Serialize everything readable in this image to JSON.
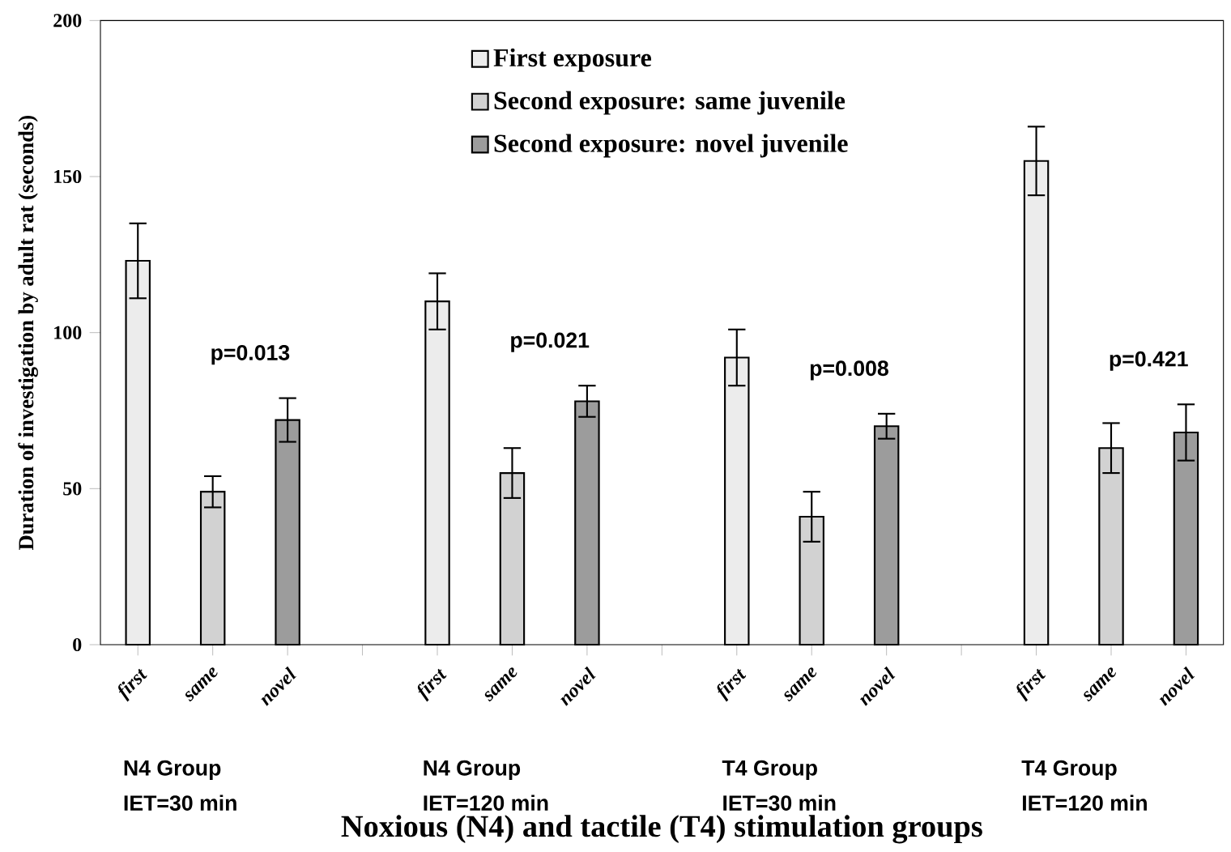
{
  "chart_data": {
    "type": "bar",
    "xlabel": "Noxious (N4) and tactile (T4) stimulation groups",
    "ylabel": "Duration of investigation by adult rat (seconds)",
    "categories": [
      "first",
      "same",
      "novel",
      null,
      "first",
      "same",
      "novel",
      null,
      "first",
      "same",
      "novel",
      null,
      "first",
      "same",
      "novel"
    ],
    "series": [
      {
        "name": "First exposure",
        "color": "#ececec",
        "values": [
          123,
          null,
          null,
          null,
          110,
          null,
          null,
          null,
          92,
          null,
          null,
          null,
          155,
          null,
          null
        ],
        "errors": [
          12,
          null,
          null,
          null,
          9,
          null,
          null,
          null,
          9,
          null,
          null,
          null,
          11,
          null,
          null
        ]
      },
      {
        "name": "Second exposure: same juvenile",
        "color": "#d2d2d2",
        "values": [
          null,
          49,
          null,
          null,
          null,
          55,
          null,
          null,
          null,
          41,
          null,
          null,
          null,
          63,
          null
        ],
        "errors": [
          null,
          5,
          null,
          null,
          null,
          8,
          null,
          null,
          null,
          8,
          null,
          null,
          null,
          8,
          null
        ]
      },
      {
        "name": "Second exposure: novel juvenile",
        "color": "#9c9c9c",
        "values": [
          null,
          null,
          72,
          null,
          null,
          null,
          78,
          null,
          null,
          null,
          70,
          null,
          null,
          null,
          68
        ],
        "errors": [
          null,
          null,
          7,
          null,
          null,
          null,
          5,
          null,
          null,
          null,
          4,
          null,
          null,
          null,
          9
        ]
      }
    ],
    "ylim": [
      0,
      200
    ],
    "yticks": [
      0,
      50,
      100,
      150,
      200
    ],
    "legend": "top",
    "grid": false,
    "annotations": [
      "N4 Group",
      "IET=30  min",
      "N4 Group",
      "IET=120  min",
      "T4 Group",
      "IET=30  min",
      "T4 Group",
      "IET=120  min",
      "p=0.013",
      "p=0.021",
      "p=0.008",
      "p=0.421"
    ]
  }
}
